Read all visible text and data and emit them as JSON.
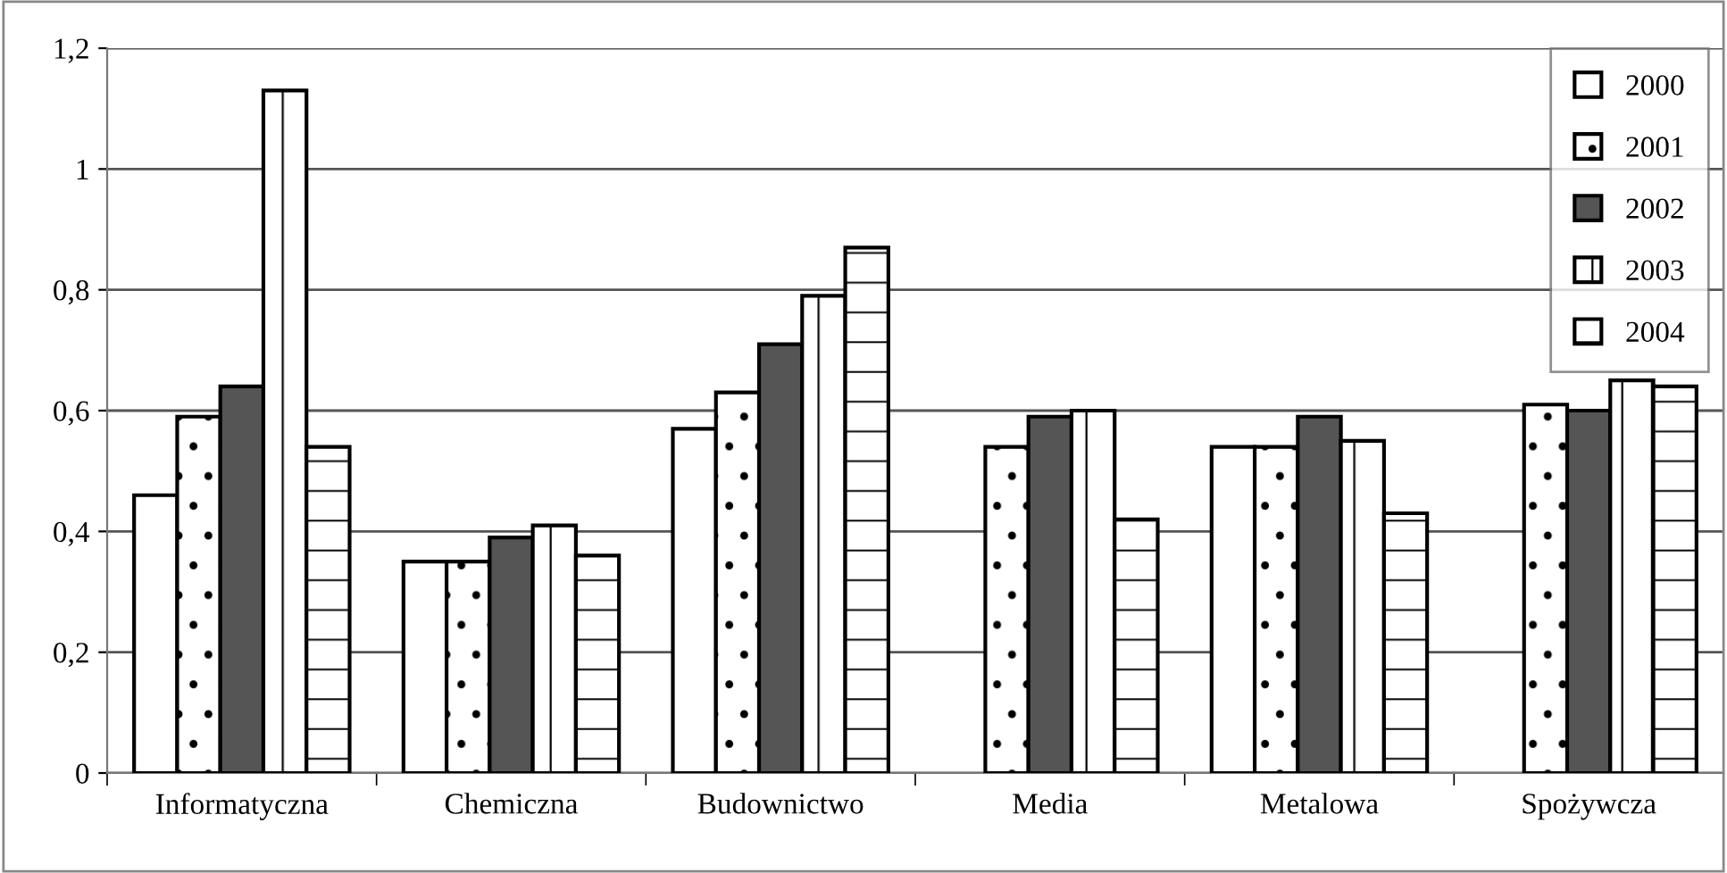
{
  "chart_data": {
    "type": "bar",
    "categories": [
      "Informatyczna",
      "Chemiczna",
      "Budownictwo",
      "Media",
      "Metalowa",
      "Spożywcza"
    ],
    "series": [
      {
        "name": "2000",
        "color": "#ffffff",
        "values": [
          0.46,
          0.35,
          0.57,
          null,
          0.54,
          null
        ]
      },
      {
        "name": "2001",
        "color": "#000000",
        "values": [
          0.59,
          0.35,
          0.63,
          0.54,
          0.54,
          0.61
        ]
      },
      {
        "name": "2002",
        "color": "#555555",
        "values": [
          0.64,
          0.39,
          0.71,
          0.59,
          0.59,
          0.6
        ]
      },
      {
        "name": "2003",
        "color": "#000000",
        "values": [
          1.13,
          0.41,
          0.79,
          0.6,
          0.55,
          0.65
        ]
      },
      {
        "name": "2004",
        "color": "#000000",
        "values": [
          0.54,
          0.36,
          0.87,
          0.42,
          0.43,
          0.64
        ]
      }
    ],
    "ylim": [
      0,
      1.2
    ],
    "yticks": [
      0,
      {
        "value": 0.2,
        "label": "0,2"
      },
      {
        "value": 0.4,
        "label": "0,4"
      },
      {
        "value": 0.6,
        "label": "0,6"
      },
      {
        "value": 0.8,
        "label": "0,8"
      },
      1,
      {
        "value": 1.2,
        "label": "1,2"
      }
    ],
    "grid": "y",
    "legend": "top right"
  }
}
